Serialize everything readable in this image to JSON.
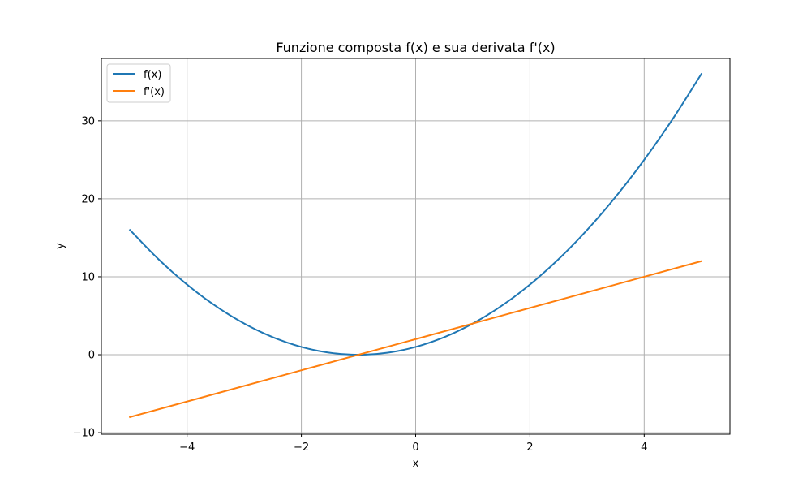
{
  "chart_data": {
    "type": "line",
    "title": "Funzione composta f(x) e sua derivata f'(x)",
    "xlabel": "x",
    "ylabel": "y",
    "xlim": [
      -5.5,
      5.5
    ],
    "ylim": [
      -10.2,
      38.0
    ],
    "xticks": [
      -4,
      -2,
      0,
      2,
      4
    ],
    "xtick_labels": [
      "−4",
      "−2",
      "0",
      "2",
      "4"
    ],
    "yticks": [
      -10,
      0,
      10,
      20,
      30
    ],
    "ytick_labels": [
      "−10",
      "0",
      "10",
      "20",
      "30"
    ],
    "grid": true,
    "legend_position": "top-left",
    "series": [
      {
        "name": "f(x)",
        "color": "#1f77b4",
        "x": [
          -5,
          -4.5,
          -4,
          -3.5,
          -3,
          -2.5,
          -2,
          -1.5,
          -1,
          -0.5,
          0,
          0.5,
          1,
          1.5,
          2,
          2.5,
          3,
          3.5,
          4,
          4.5,
          5
        ],
        "values": [
          16,
          12.25,
          9,
          6.25,
          4,
          2.25,
          1,
          0.25,
          0,
          0.25,
          1,
          2.25,
          4,
          6.25,
          9,
          12.25,
          16,
          20.25,
          25,
          30.25,
          36
        ]
      },
      {
        "name": "f'(x)",
        "color": "#ff7f0e",
        "x": [
          -5,
          5
        ],
        "values": [
          -8,
          12
        ]
      }
    ]
  }
}
